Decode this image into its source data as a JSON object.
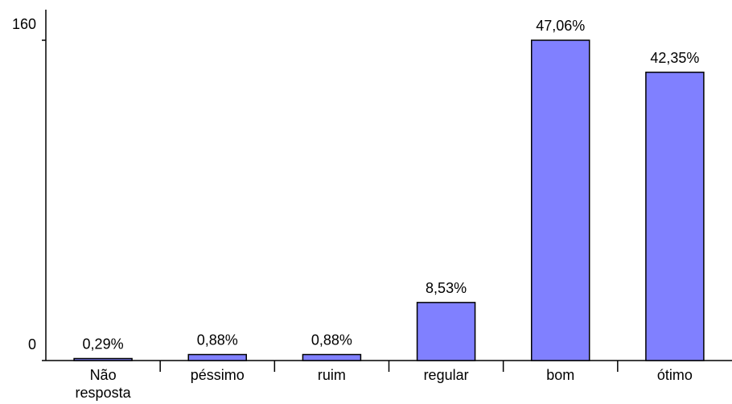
{
  "chart_data": {
    "type": "bar",
    "categories": [
      "Não resposta",
      "péssimo",
      "ruim",
      "regular",
      "bom",
      "ótimo"
    ],
    "values": [
      1,
      3,
      3,
      29,
      160,
      144
    ],
    "data_labels": [
      "0,29%",
      "0,88%",
      "0,88%",
      "8,53%",
      "47,06%",
      "42,35%"
    ],
    "y_tick_labels": [
      "0",
      "160"
    ],
    "ylim": [
      0,
      160
    ],
    "title": "",
    "xlabel": "",
    "ylabel": "",
    "grid": false,
    "legend": "none",
    "colors": {
      "bar_fill": "#8080ff",
      "bar_stroke": "#000000",
      "axis": "#000000"
    }
  }
}
